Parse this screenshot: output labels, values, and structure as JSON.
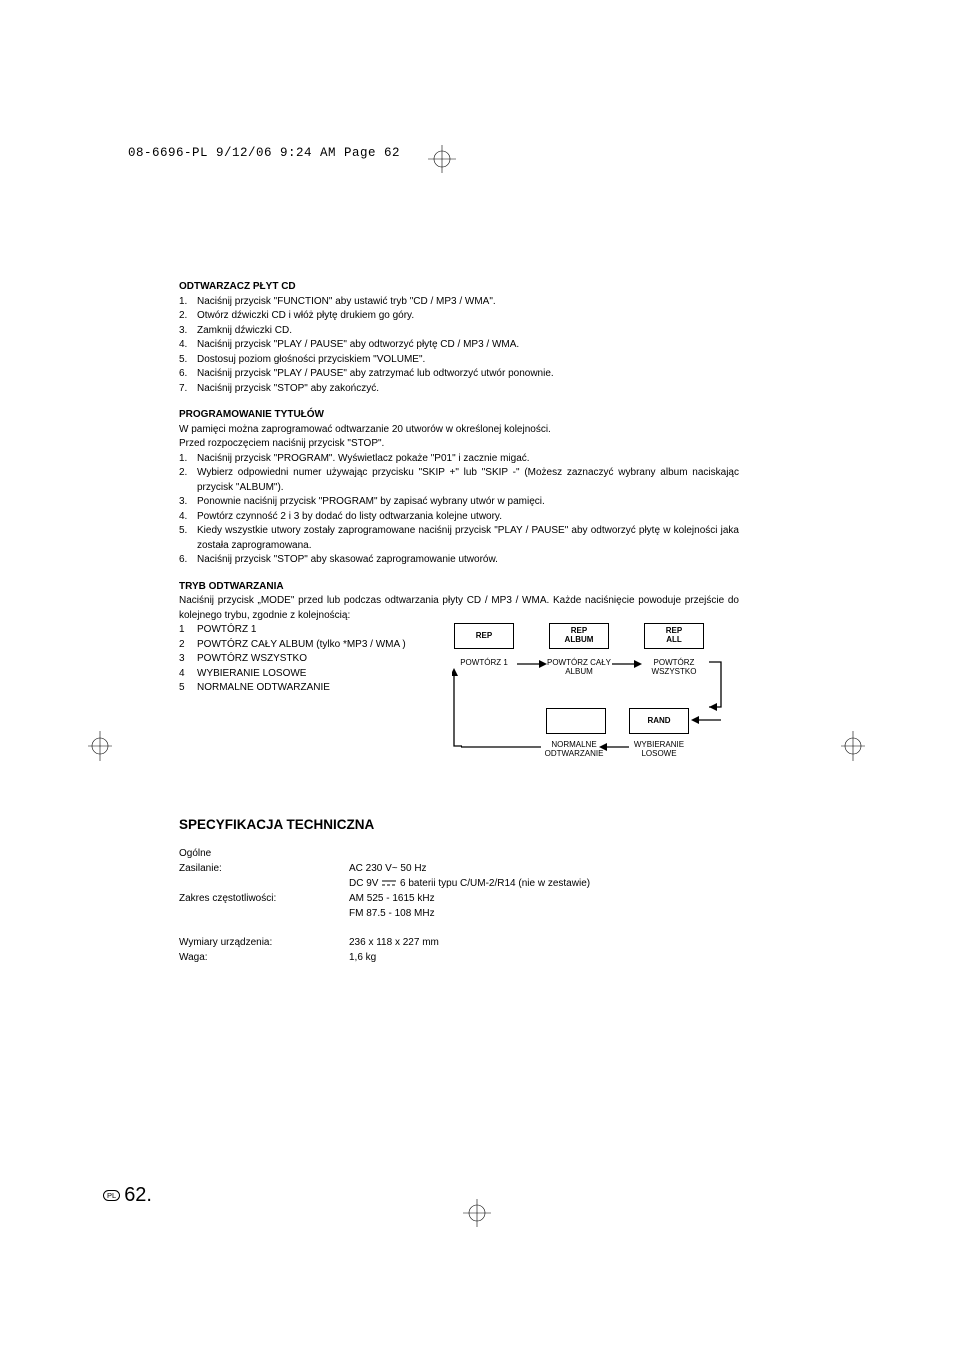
{
  "print_header": "08-6696-PL  9/12/06  9:24 AM  Page 62",
  "section1": {
    "title": "ODTWARZACZ PŁYT CD",
    "items": [
      "Naciśnij przycisk \"FUNCTION\" aby ustawić tryb \"CD / MP3 / WMA\".",
      "Otwórz dźwiczki CD i włóż płytę drukiem go góry.",
      "Zamknij dźwiczki CD.",
      "Naciśnij przycisk \"PLAY / PAUSE\" aby odtworzyć płytę CD / MP3 / WMA.",
      "Dostosuj poziom głośności przyciskiem \"VOLUME\".",
      "Naciśnij przycisk \"PLAY / PAUSE\" aby zatrzymać lub odtworzyć utwór ponownie.",
      "Naciśnij przycisk \"STOP\" aby zakończyć."
    ]
  },
  "section2": {
    "title": "PROGRAMOWANIE TYTUŁÓW",
    "intro1": "W pamięci można zaprogramować odtwarzanie 20 utworów w określonej kolejności.",
    "intro2": "Przed rozpoczęciem naciśnij przycisk \"STOP\".",
    "items": [
      "Naciśnij przycisk \"PROGRAM\". Wyświetlacz pokaże \"P01\" i zacznie migać.",
      "Wybierz odpowiedni numer używając przycisku \"SKIP +\" lub \"SKIP -\" (Możesz zaznaczyć wybrany album naciskając przycisk  \"ALBUM\").",
      "Ponownie naciśnij przycisk  \"PROGRAM\"  by zapisać wybrany utwór w pamięci.",
      "Powtórz czynność 2 i 3 by dodać do listy odtwarzania kolejne utwory.",
      "Kiedy wszystkie utwory zostały zaprogramowane naciśnij przycisk \"PLAY / PAUSE\" aby odtworzyć płytę w kolejności jaka została zaprogramowana.",
      "Naciśnij przycisk \"STOP\" aby skasować zaprogramowanie utworów."
    ]
  },
  "section3": {
    "title": "TRYB ODTWARZANIA",
    "intro": "Naciśnij przycisk „MODE\" przed lub podczas odtwarzania płyty CD / MP3 / WMA. Każde naciśnięcie powoduje przejście do kolejnego trybu, zgodnie z kolejnością:",
    "items": [
      "POWTÓRZ 1",
      "POWTÓRZ CAŁY ALBUM (tylko *MP3 / WMA )",
      "POWTÓRZ WSZYSTKO",
      "WYBIERANIE LOSOWE",
      "NORMALNE ODTWARZANIE"
    ]
  },
  "diagram": {
    "box1": "REP",
    "box2": "REP\nALBUM",
    "box3": "REP\nALL",
    "box4": "RAND",
    "label1": "POWTÓRZ 1",
    "label2": "POWTÓRZ CAŁY\nALBUM",
    "label3": "POWTÓRZ\nWSZYSTKO",
    "label4": "WYBIERANIE\nLOSOWE",
    "label5": "NORMALNE\nODTWARZANIE",
    "arrow_color": "#000000",
    "box_border": "#000000"
  },
  "spec": {
    "heading": "SPECYFIKACJA TECHNICZNA",
    "general": "Ogólne",
    "rows": [
      {
        "label": "Zasilanie:",
        "value": "AC 230 V~  50 Hz"
      },
      {
        "label": "",
        "value": "DC 9V ⎓  6 baterii typu C/UM-2/R14 (nie w zestawie)"
      },
      {
        "label": "Zakres częstotliwości:",
        "value": "AM 525 - 1615 kHz"
      },
      {
        "label": "",
        "value": "FM 87.5 - 108 MHz"
      },
      {
        "label": "",
        "value": ""
      },
      {
        "label": "Wymiary urządzenia:",
        "value": "236 x 118 x 227 mm"
      },
      {
        "label": "Waga:",
        "value": "1,6 kg"
      }
    ]
  },
  "footer": {
    "lang": "PL",
    "page": "62."
  },
  "colors": {
    "text": "#000000",
    "background": "#ffffff"
  }
}
